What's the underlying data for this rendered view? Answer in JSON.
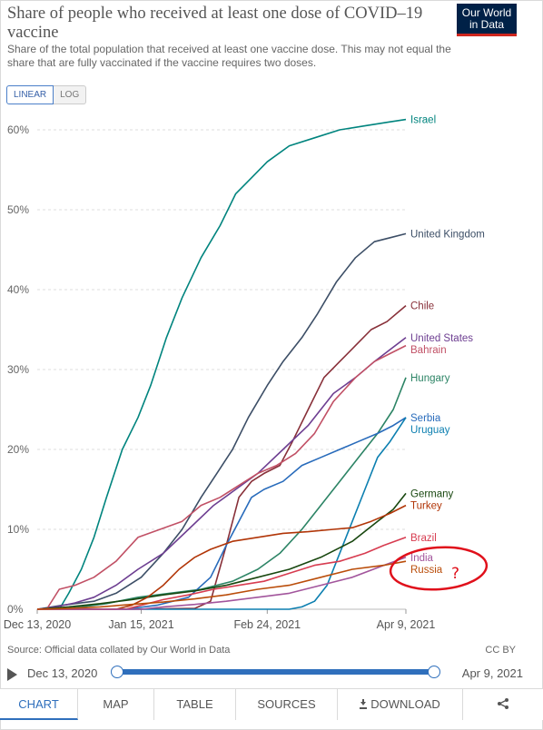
{
  "title": "Share of people who received at least one dose of COVID–19 vaccine",
  "subtitle": "Share of the total population that received at least one vaccine dose. This may not equal the share that are fully vaccinated if the vaccine requires two doses.",
  "logo": {
    "line1": "Our World",
    "line2": "in Data"
  },
  "scale_toggle": {
    "linear": "LINEAR",
    "log": "LOG",
    "active": "linear"
  },
  "source": "Source: Official data collated by Our World in Data",
  "license": "CC BY",
  "timeline": {
    "start": "Dec 13, 2020",
    "end": "Apr 9, 2021"
  },
  "tabs": [
    "CHART",
    "MAP",
    "TABLE",
    "SOURCES",
    "DOWNLOAD"
  ],
  "annotation": {
    "mark": "?",
    "color": "#e0101b"
  },
  "chart_data": {
    "type": "line",
    "y_unit": "%",
    "ylim": [
      0,
      60
    ],
    "yticks": [
      0,
      10,
      20,
      30,
      40,
      50,
      60
    ],
    "ytick_labels": [
      "0%",
      "10%",
      "20%",
      "30%",
      "40%",
      "50%",
      "60%"
    ],
    "xlim": [
      0,
      117
    ],
    "xticks": [
      0,
      33,
      73,
      117
    ],
    "xtick_labels": [
      "Dec 13, 2020",
      "Jan 15, 2021",
      "Feb 24, 2021",
      "Apr 9, 2021"
    ],
    "grid": "horizontal-dashed",
    "legend": "inline-right",
    "series": [
      {
        "name": "Israel",
        "color": "#00847e",
        "points": [
          [
            7,
            0
          ],
          [
            10,
            2
          ],
          [
            14,
            5
          ],
          [
            18,
            9
          ],
          [
            22,
            14
          ],
          [
            27,
            20
          ],
          [
            32,
            24
          ],
          [
            36,
            28
          ],
          [
            41,
            34
          ],
          [
            46,
            39
          ],
          [
            52,
            44
          ],
          [
            58,
            48
          ],
          [
            63,
            52
          ],
          [
            68,
            54
          ],
          [
            73,
            56
          ],
          [
            80,
            58
          ],
          [
            88,
            59
          ],
          [
            96,
            60
          ],
          [
            104,
            60.5
          ],
          [
            112,
            61
          ],
          [
            117,
            61.3
          ]
        ]
      },
      {
        "name": "United Kingdom",
        "color": "#3c4e66",
        "points": [
          [
            0,
            0
          ],
          [
            8,
            0.5
          ],
          [
            18,
            1
          ],
          [
            25,
            2
          ],
          [
            33,
            4
          ],
          [
            40,
            7
          ],
          [
            46,
            10
          ],
          [
            52,
            14
          ],
          [
            57,
            17
          ],
          [
            62,
            20
          ],
          [
            67,
            24
          ],
          [
            73,
            28
          ],
          [
            78,
            31
          ],
          [
            84,
            34
          ],
          [
            89,
            37
          ],
          [
            95,
            41
          ],
          [
            101,
            44
          ],
          [
            107,
            46
          ],
          [
            112,
            46.5
          ],
          [
            117,
            47
          ]
        ]
      },
      {
        "name": "Chile",
        "color": "#883039",
        "points": [
          [
            0,
            0
          ],
          [
            30,
            0
          ],
          [
            50,
            0.1
          ],
          [
            55,
            1
          ],
          [
            60,
            8
          ],
          [
            64,
            14
          ],
          [
            68,
            16
          ],
          [
            72,
            17
          ],
          [
            77,
            18
          ],
          [
            81,
            21
          ],
          [
            86,
            25
          ],
          [
            91,
            29
          ],
          [
            96,
            31
          ],
          [
            101,
            33
          ],
          [
            106,
            35
          ],
          [
            111,
            36
          ],
          [
            117,
            38
          ]
        ]
      },
      {
        "name": "United States",
        "color": "#6d3e91",
        "points": [
          [
            0,
            0
          ],
          [
            6,
            0.3
          ],
          [
            12,
            0.8
          ],
          [
            18,
            1.5
          ],
          [
            25,
            3
          ],
          [
            32,
            5
          ],
          [
            40,
            7
          ],
          [
            48,
            10
          ],
          [
            56,
            13
          ],
          [
            63,
            15
          ],
          [
            70,
            17
          ],
          [
            78,
            20
          ],
          [
            86,
            23
          ],
          [
            94,
            27
          ],
          [
            101,
            29
          ],
          [
            107,
            31
          ],
          [
            112,
            32.5
          ],
          [
            117,
            34
          ]
        ]
      },
      {
        "name": "Bahrain",
        "color": "#c15065",
        "points": [
          [
            3,
            0
          ],
          [
            7,
            2.5
          ],
          [
            12,
            3
          ],
          [
            18,
            4
          ],
          [
            25,
            6
          ],
          [
            32,
            9
          ],
          [
            39,
            10
          ],
          [
            46,
            11
          ],
          [
            52,
            13
          ],
          [
            58,
            14
          ],
          [
            64,
            15.5
          ],
          [
            70,
            17
          ],
          [
            76,
            18
          ],
          [
            82,
            19.5
          ],
          [
            88,
            22
          ],
          [
            94,
            26
          ],
          [
            101,
            29
          ],
          [
            107,
            31
          ],
          [
            112,
            32
          ],
          [
            117,
            33
          ]
        ]
      },
      {
        "name": "Hungary",
        "color": "#2c8465",
        "points": [
          [
            7,
            0
          ],
          [
            14,
            0.3
          ],
          [
            22,
            0.7
          ],
          [
            32,
            1.5
          ],
          [
            42,
            2
          ],
          [
            52,
            2.5
          ],
          [
            62,
            3.5
          ],
          [
            70,
            5
          ],
          [
            77,
            7
          ],
          [
            84,
            10
          ],
          [
            90,
            13
          ],
          [
            96,
            16
          ],
          [
            102,
            19
          ],
          [
            108,
            22
          ],
          [
            113,
            25
          ],
          [
            117,
            29
          ]
        ]
      },
      {
        "name": "Serbia",
        "color": "#286bbb",
        "points": [
          [
            28,
            0
          ],
          [
            38,
            0.5
          ],
          [
            48,
            1.5
          ],
          [
            55,
            4
          ],
          [
            60,
            8
          ],
          [
            64,
            11
          ],
          [
            68,
            14
          ],
          [
            72,
            15
          ],
          [
            78,
            16
          ],
          [
            84,
            18
          ],
          [
            90,
            19
          ],
          [
            96,
            20
          ],
          [
            102,
            21
          ],
          [
            108,
            22
          ],
          [
            113,
            23
          ],
          [
            117,
            24
          ]
        ]
      },
      {
        "name": "Uruguay",
        "color": "#0c7fb0",
        "points": [
          [
            0,
            0
          ],
          [
            80,
            0
          ],
          [
            84,
            0.3
          ],
          [
            88,
            1
          ],
          [
            92,
            3
          ],
          [
            96,
            7
          ],
          [
            100,
            11
          ],
          [
            104,
            15
          ],
          [
            108,
            19
          ],
          [
            112,
            21
          ],
          [
            117,
            24
          ]
        ]
      },
      {
        "name": "Germany",
        "color": "#18470f",
        "points": [
          [
            0,
            0
          ],
          [
            10,
            0.3
          ],
          [
            20,
            0.7
          ],
          [
            30,
            1.2
          ],
          [
            40,
            1.8
          ],
          [
            50,
            2.3
          ],
          [
            60,
            3
          ],
          [
            70,
            4
          ],
          [
            80,
            5
          ],
          [
            90,
            6.5
          ],
          [
            100,
            8.5
          ],
          [
            108,
            11
          ],
          [
            113,
            12.5
          ],
          [
            117,
            14.5
          ]
        ]
      },
      {
        "name": "Turkey",
        "color": "#b13507",
        "points": [
          [
            0,
            0
          ],
          [
            25,
            0
          ],
          [
            30,
            0.5
          ],
          [
            35,
            1.5
          ],
          [
            40,
            3
          ],
          [
            45,
            5
          ],
          [
            50,
            6.5
          ],
          [
            55,
            7.5
          ],
          [
            62,
            8.5
          ],
          [
            70,
            9
          ],
          [
            78,
            9.5
          ],
          [
            86,
            9.7
          ],
          [
            94,
            10
          ],
          [
            100,
            10.2
          ],
          [
            106,
            11
          ],
          [
            112,
            12
          ],
          [
            117,
            13
          ]
        ]
      },
      {
        "name": "Brazil",
        "color": "#d73c50",
        "points": [
          [
            0,
            0
          ],
          [
            28,
            0
          ],
          [
            33,
            0.5
          ],
          [
            40,
            1.2
          ],
          [
            48,
            1.8
          ],
          [
            56,
            2.5
          ],
          [
            64,
            3
          ],
          [
            72,
            3.5
          ],
          [
            80,
            4.5
          ],
          [
            88,
            5.5
          ],
          [
            96,
            6
          ],
          [
            104,
            7
          ],
          [
            110,
            8
          ],
          [
            117,
            9
          ]
        ]
      },
      {
        "name": "India",
        "color": "#a2559c",
        "points": [
          [
            0,
            0
          ],
          [
            33,
            0
          ],
          [
            40,
            0.3
          ],
          [
            50,
            0.6
          ],
          [
            60,
            1
          ],
          [
            70,
            1.5
          ],
          [
            80,
            2
          ],
          [
            90,
            3
          ],
          [
            100,
            4
          ],
          [
            110,
            5.5
          ],
          [
            117,
            6.5
          ]
        ]
      },
      {
        "name": "Russia",
        "color": "#ba4d0a",
        "points": [
          [
            0,
            0
          ],
          [
            10,
            0.1
          ],
          [
            20,
            0.3
          ],
          [
            30,
            0.6
          ],
          [
            40,
            0.9
          ],
          [
            50,
            1.3
          ],
          [
            60,
            1.8
          ],
          [
            70,
            2.5
          ],
          [
            80,
            3
          ],
          [
            90,
            4
          ],
          [
            100,
            5
          ],
          [
            110,
            5.5
          ],
          [
            117,
            6
          ]
        ]
      }
    ]
  }
}
